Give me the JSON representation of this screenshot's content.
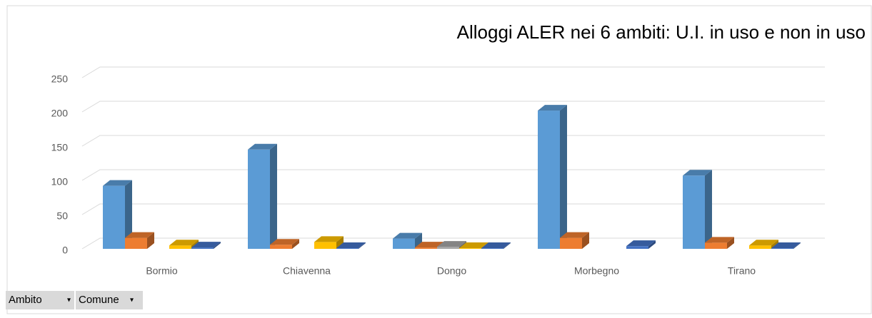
{
  "chart_data": {
    "type": "bar3d",
    "title": "Alloggi ALER nei 6 ambiti: U.I. in uso e non in uso",
    "categories": [
      "Bormio",
      "Chiavenna",
      "Dongo",
      "Morbegno",
      "Tirano"
    ],
    "series": [
      {
        "color": "#5b9bd5",
        "values": [
          92,
          145,
          15,
          202,
          107
        ]
      },
      {
        "color": "#ed7d31",
        "values": [
          16,
          6,
          2,
          16,
          9
        ]
      },
      {
        "color": "#a5a5a5",
        "values": [
          0,
          0,
          3,
          0,
          0
        ]
      },
      {
        "color": "#ffc000",
        "values": [
          5,
          10,
          1,
          0,
          5
        ]
      },
      {
        "color": "#4472c4",
        "values": [
          2,
          1,
          1,
          4,
          1
        ]
      }
    ],
    "ylim": [
      0,
      250
    ],
    "yticks": [
      0,
      50,
      100,
      150,
      200,
      250
    ],
    "grid": true
  },
  "field_buttons": [
    "Ambito",
    "Comune"
  ]
}
